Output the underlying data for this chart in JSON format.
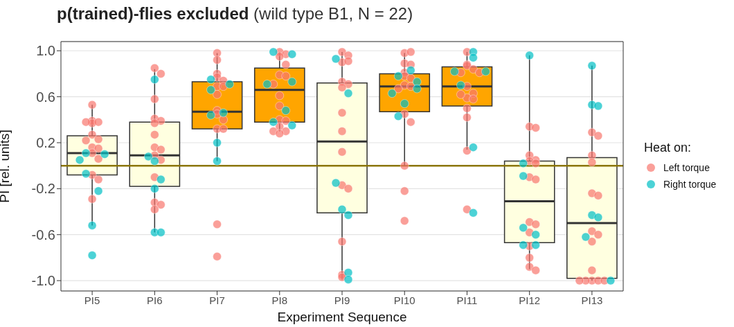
{
  "chart_data": {
    "type": "box",
    "title": "p(trained)-flies excluded",
    "subtitle": "(wild type B1, N = 22)",
    "xlabel": "Experiment Sequence",
    "ylabel": "PI [rel. units]",
    "legend_title": "Heat on:",
    "categories": [
      "PI5",
      "PI6",
      "PI7",
      "PI8",
      "PI9",
      "PI10",
      "PI11",
      "PI12",
      "PI13"
    ],
    "colors": [
      "#ffffe0",
      "#ffffe0",
      "#ffa500",
      "#ffa500",
      "#ffffe0",
      "#ffa500",
      "#ffa500",
      "#ffffe0",
      "#ffffe0"
    ],
    "boxes": [
      {
        "low": -0.52,
        "q1": -0.08,
        "median": 0.11,
        "q3": 0.26,
        "high": 0.53
      },
      {
        "low": -0.58,
        "q1": -0.18,
        "median": 0.09,
        "q3": 0.38,
        "high": 0.84
      },
      {
        "low": 0.04,
        "q1": 0.32,
        "median": 0.47,
        "q3": 0.73,
        "high": 0.98
      },
      {
        "low": 0.3,
        "q1": 0.38,
        "median": 0.66,
        "q3": 0.85,
        "high": 0.99
      },
      {
        "low": -0.99,
        "q1": -0.41,
        "median": 0.21,
        "q3": 0.72,
        "high": 0.99
      },
      {
        "low": 0.0,
        "q1": 0.47,
        "median": 0.69,
        "q3": 0.8,
        "high": 0.98
      },
      {
        "low": 0.14,
        "q1": 0.52,
        "median": 0.69,
        "q3": 0.86,
        "high": 0.99
      },
      {
        "low": -0.9,
        "q1": -0.67,
        "median": -0.31,
        "q3": 0.04,
        "high": 0.96
      },
      {
        "low": -1.0,
        "q1": -0.98,
        "median": -0.5,
        "q3": 0.07,
        "high": 0.87
      }
    ],
    "series": [
      {
        "name": "Left torque",
        "type": "scatter",
        "color": "#f8766d",
        "x": [
          "PI5",
          "PI5",
          "PI5",
          "PI5",
          "PI5",
          "PI5",
          "PI5",
          "PI5",
          "PI5",
          "PI5",
          "PI5",
          "PI5",
          "PI5",
          "PI5",
          "PI5",
          "PI6",
          "PI6",
          "PI6",
          "PI6",
          "PI6",
          "PI6",
          "PI6",
          "PI6",
          "PI6",
          "PI6",
          "PI6",
          "PI6",
          "PI6",
          "PI6",
          "PI6",
          "PI7",
          "PI7",
          "PI7",
          "PI7",
          "PI7",
          "PI7",
          "PI7",
          "PI7",
          "PI7",
          "PI7",
          "PI7",
          "PI7",
          "PI7",
          "PI7",
          "PI7",
          "PI8",
          "PI8",
          "PI8",
          "PI8",
          "PI8",
          "PI8",
          "PI8",
          "PI8",
          "PI8",
          "PI8",
          "PI8",
          "PI8",
          "PI8",
          "PI8",
          "PI8",
          "PI9",
          "PI9",
          "PI9",
          "PI9",
          "PI9",
          "PI9",
          "PI9",
          "PI9",
          "PI9",
          "PI9",
          "PI9",
          "PI9",
          "PI9",
          "PI9",
          "PI9",
          "PI10",
          "PI10",
          "PI10",
          "PI10",
          "PI10",
          "PI10",
          "PI10",
          "PI10",
          "PI10",
          "PI10",
          "PI10",
          "PI10",
          "PI10",
          "PI10",
          "PI10",
          "PI11",
          "PI11",
          "PI11",
          "PI11",
          "PI11",
          "PI11",
          "PI11",
          "PI11",
          "PI11",
          "PI11",
          "PI11",
          "PI11",
          "PI11",
          "PI11",
          "PI11",
          "PI12",
          "PI12",
          "PI12",
          "PI12",
          "PI12",
          "PI12",
          "PI12",
          "PI12",
          "PI12",
          "PI12",
          "PI12",
          "PI12",
          "PI12",
          "PI12",
          "PI12",
          "PI13",
          "PI13",
          "PI13",
          "PI13",
          "PI13",
          "PI13",
          "PI13",
          "PI13",
          "PI13",
          "PI13",
          "PI13",
          "PI13",
          "PI13",
          "PI13",
          "PI13"
        ],
        "values": [
          0.53,
          0.39,
          0.37,
          0.38,
          0.38,
          0.27,
          0.23,
          0.22,
          0.16,
          0.15,
          0.11,
          0.06,
          -0.08,
          -0.12,
          -0.29,
          0.85,
          0.8,
          0.58,
          0.41,
          0.39,
          0.37,
          0.27,
          0.16,
          0.14,
          0.09,
          0.05,
          -0.1,
          -0.32,
          -0.34,
          -0.38,
          0.98,
          0.92,
          0.8,
          0.77,
          0.74,
          0.69,
          0.62,
          0.48,
          0.45,
          0.4,
          0.32,
          0.32,
          -0.51,
          -0.79,
          0.69,
          0.99,
          0.97,
          0.95,
          0.88,
          0.79,
          0.78,
          0.71,
          0.61,
          0.52,
          0.4,
          0.39,
          0.34,
          0.3,
          0.3,
          0.28,
          0.99,
          0.96,
          0.9,
          0.91,
          0.73,
          0.71,
          0.68,
          0.46,
          0.3,
          0.12,
          -0.17,
          -0.2,
          -0.66,
          -0.95,
          -0.97,
          0.98,
          0.99,
          0.89,
          0.88,
          0.81,
          0.78,
          0.7,
          0.69,
          0.67,
          0.0,
          -0.22,
          -0.48,
          0.45,
          0.38,
          0.76,
          0.99,
          0.88,
          0.87,
          0.84,
          0.81,
          0.69,
          0.63,
          0.59,
          0.58,
          0.5,
          0.42,
          0.13,
          -0.38,
          0.81,
          0.62,
          0.34,
          0.33,
          0.09,
          0.05,
          0.04,
          0.02,
          -0.1,
          -0.12,
          -0.49,
          -0.51,
          -0.58,
          -0.7,
          -0.8,
          -0.88,
          -0.91,
          0.29,
          0.26,
          0.09,
          0.03,
          -0.24,
          -0.26,
          -0.57,
          -0.6,
          -0.66,
          -0.91,
          -1.0,
          -1.0,
          -1.0,
          -1.0,
          -1.0
        ]
      },
      {
        "name": "Right torque",
        "type": "scatter",
        "color": "#00bfc4",
        "x": [
          "PI5",
          "PI5",
          "PI5",
          "PI5",
          "PI5",
          "PI5",
          "PI5",
          "PI6",
          "PI6",
          "PI6",
          "PI6",
          "PI6",
          "PI6",
          "PI6",
          "PI7",
          "PI7",
          "PI7",
          "PI7",
          "PI7",
          "PI7",
          "PI7",
          "PI8",
          "PI8",
          "PI8",
          "PI8",
          "PI8",
          "PI8",
          "PI8",
          "PI9",
          "PI9",
          "PI9",
          "PI9",
          "PI9",
          "PI9",
          "PI9",
          "PI10",
          "PI10",
          "PI10",
          "PI10",
          "PI10",
          "PI10",
          "PI10",
          "PI11",
          "PI11",
          "PI11",
          "PI11",
          "PI11",
          "PI11",
          "PI11",
          "PI12",
          "PI12",
          "PI12",
          "PI12",
          "PI12",
          "PI12",
          "PI12",
          "PI13",
          "PI13",
          "PI13",
          "PI13",
          "PI13",
          "PI13",
          "PI13"
        ],
        "values": [
          0.11,
          0.1,
          0.05,
          -0.07,
          -0.22,
          -0.52,
          -0.78,
          0.75,
          0.08,
          0.04,
          -0.12,
          -0.2,
          -0.58,
          -0.58,
          0.75,
          0.71,
          0.66,
          0.46,
          0.44,
          0.2,
          0.04,
          0.99,
          0.97,
          0.73,
          0.71,
          0.48,
          0.38,
          0.35,
          0.93,
          0.63,
          -0.15,
          -0.38,
          -0.43,
          -0.93,
          -0.99,
          0.83,
          0.78,
          0.73,
          0.67,
          0.63,
          0.54,
          0.43,
          0.99,
          0.94,
          0.82,
          0.82,
          0.7,
          0.16,
          -0.41,
          0.96,
          0.02,
          -0.09,
          -0.54,
          -0.6,
          -0.69,
          -0.69,
          0.87,
          0.53,
          0.52,
          -0.43,
          -0.45,
          -0.62,
          -1.0
        ]
      }
    ],
    "ylim": [
      -1.09,
      1.08
    ],
    "yticks": [
      {
        "value": -1,
        "label": "-1.0"
      },
      -0.6,
      -0.2,
      0.2,
      0.6,
      {
        "value": 1,
        "label": "1.0"
      }
    ],
    "ref_lines": [
      {
        "axis": "y",
        "value": 0,
        "color": "#8b7500"
      }
    ],
    "grid": "y",
    "legend": "right"
  }
}
